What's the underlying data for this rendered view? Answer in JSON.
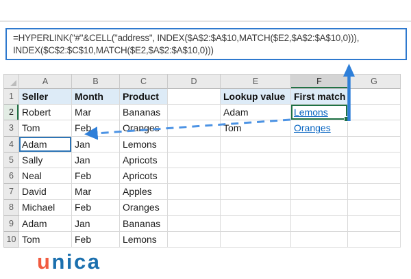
{
  "formula_box": {
    "line1": "=HYPERLINK(\"#\"&CELL(\"address\", INDEX($A$2:$A$10,MATCH($E2,$A$2:$A$10,0))),",
    "line2": "INDEX($C$2:$C$10,MATCH($E2,$A$2:$A$10,0)))"
  },
  "spreadsheet": {
    "column_headers": [
      "A",
      "B",
      "C",
      "D",
      "E",
      "F",
      "G"
    ],
    "selected_column": "F",
    "selected_row": "2",
    "selected_cell": "F2",
    "annotated_cell": "A4",
    "hyperlink_cells": [
      "F2",
      "F3"
    ],
    "header_fill_columns": [
      "A",
      "B",
      "C",
      "E",
      "F"
    ],
    "rows": [
      {
        "num": "1",
        "cells": [
          "Seller",
          "Month",
          "Product",
          "",
          "Lookup value",
          "First match",
          ""
        ]
      },
      {
        "num": "2",
        "cells": [
          "Robert",
          "Mar",
          "Bananas",
          "",
          "Adam",
          "Lemons",
          ""
        ]
      },
      {
        "num": "3",
        "cells": [
          "Tom",
          "Feb",
          "Oranges",
          "",
          "Tom",
          "Oranges",
          ""
        ]
      },
      {
        "num": "4",
        "cells": [
          "Adam",
          "Jan",
          "Lemons",
          "",
          "",
          "",
          ""
        ]
      },
      {
        "num": "5",
        "cells": [
          "Sally",
          "Jan",
          "Apricots",
          "",
          "",
          "",
          ""
        ]
      },
      {
        "num": "6",
        "cells": [
          "Neal",
          "Feb",
          "Apricots",
          "",
          "",
          "",
          ""
        ]
      },
      {
        "num": "7",
        "cells": [
          "David",
          "Mar",
          "Apples",
          "",
          "",
          "",
          ""
        ]
      },
      {
        "num": "8",
        "cells": [
          "Michael",
          "Feb",
          "Oranges",
          "",
          "",
          "",
          ""
        ]
      },
      {
        "num": "9",
        "cells": [
          "Adam",
          "Jan",
          "Bananas",
          "",
          "",
          "",
          ""
        ]
      },
      {
        "num": "10",
        "cells": [
          "Tom",
          "Feb",
          "Lemons",
          "",
          "",
          "",
          ""
        ]
      }
    ]
  },
  "annotations": {
    "up_arrow_color": "#2E7FD9",
    "dashed_arrow_color": "#4C93E4",
    "selection_green": "#1E7145",
    "annotation_blue": "#2E75B6",
    "header_fill_blue": "#DDEBF7",
    "hyperlink_blue": "#0563C1"
  },
  "logo": {
    "text": "unica",
    "first_letter": "u",
    "rest_letters": "nica",
    "orange": "#F15B40",
    "blue": "#1A6FAE"
  }
}
